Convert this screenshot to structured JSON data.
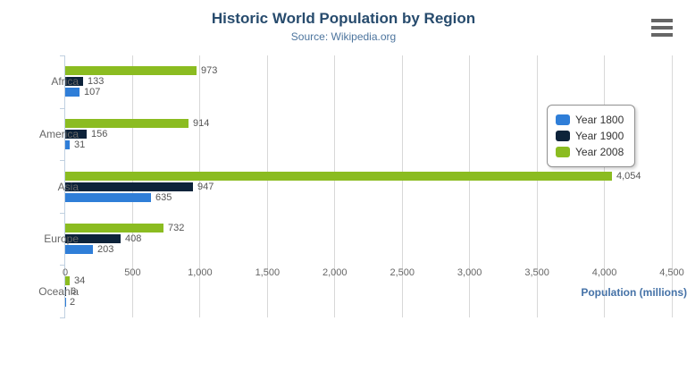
{
  "header": {
    "title": "Historic World Population by Region",
    "subtitle": "Source: Wikipedia.org"
  },
  "chart_data": {
    "type": "bar",
    "orientation": "horizontal",
    "title": "Historic World Population by Region",
    "subtitle": "Source: Wikipedia.org",
    "categories": [
      "Africa",
      "America",
      "Asia",
      "Europe",
      "Oceania"
    ],
    "series": [
      {
        "name": "Year 1800",
        "color": "#2f7ed8",
        "values": [
          107,
          31,
          635,
          203,
          2
        ]
      },
      {
        "name": "Year 1900",
        "color": "#0d233a",
        "values": [
          133,
          156,
          947,
          408,
          6
        ]
      },
      {
        "name": "Year 2008",
        "color": "#8bbc21",
        "values": [
          973,
          914,
          4054,
          732,
          34
        ]
      }
    ],
    "bar_order_top_to_bottom": [
      "Year 2008",
      "Year 1900",
      "Year 1800"
    ],
    "xlabel": "Population (millions)",
    "xlim": [
      0,
      4500
    ],
    "tick_interval": 500,
    "grid": true,
    "legend_position": "right",
    "data_labels": true
  },
  "colors": {
    "title": "#274b6d",
    "subtitle": "#4d759e",
    "axis_title": "#4572a7",
    "gridline": "#d8d8d8",
    "category_axis_line": "#c0d0e0",
    "tick_label": "#666666",
    "data_label": "#555555",
    "menu_icon": "#666666"
  },
  "icons": {
    "menu": "hamburger-icon"
  }
}
